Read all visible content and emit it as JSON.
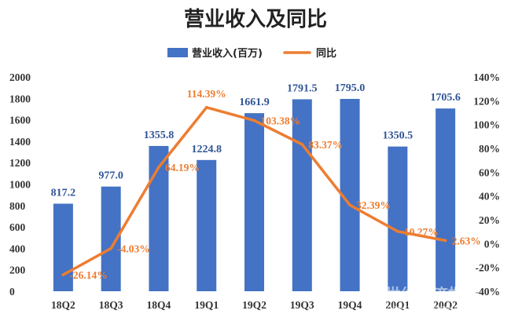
{
  "chart_data": {
    "type": "bar",
    "title": "营业收入及同比",
    "categories": [
      "18Q2",
      "18Q3",
      "18Q4",
      "19Q1",
      "19Q2",
      "19Q3",
      "19Q4",
      "20Q1",
      "20Q2"
    ],
    "series": [
      {
        "name": "营业收入(百万)",
        "type": "bar",
        "axis": "left",
        "color": "#4472c4",
        "values": [
          817.2,
          977.0,
          1355.8,
          1224.8,
          1661.9,
          1791.5,
          1795.0,
          1350.5,
          1705.6
        ],
        "labels": [
          "817.2",
          "977.0",
          "1355.8",
          "1224.8",
          "1661.9",
          "1791.5",
          "1795.0",
          "1350.5",
          "1705.6"
        ]
      },
      {
        "name": "同比",
        "type": "line",
        "axis": "right",
        "color": "#ed7d31",
        "values": [
          -26.14,
          -4.03,
          64.19,
          114.39,
          103.38,
          83.37,
          32.39,
          10.27,
          2.63
        ],
        "labels": [
          "-26.14%",
          "-4.03%",
          "64.19%",
          "114.39%",
          "103.38%",
          "83.37%",
          "32.39%",
          "10.27%",
          "2.63%"
        ]
      }
    ],
    "y_left": {
      "ylim": [
        0,
        2000
      ],
      "ticks": [
        0,
        200,
        400,
        600,
        800,
        1000,
        1200,
        1400,
        1600,
        1800,
        2000
      ],
      "tick_labels": [
        "0",
        "200",
        "400",
        "600",
        "800",
        "1000",
        "1200",
        "1400",
        "1600",
        "1800",
        "2000"
      ]
    },
    "y_right": {
      "ylim": [
        -40,
        140
      ],
      "ticks": [
        -40,
        -20,
        0,
        20,
        40,
        60,
        80,
        100,
        120,
        140
      ],
      "tick_labels": [
        "-40%",
        "-20%",
        "0%",
        "20%",
        "40%",
        "60%",
        "80%",
        "100%",
        "120%",
        "140%"
      ]
    },
    "legend_position": "top-center",
    "grid": false
  },
  "watermark": {
    "text": "21世纪经济报道",
    "subtext": "21ST CENTURY BUSINESS HERALD"
  }
}
